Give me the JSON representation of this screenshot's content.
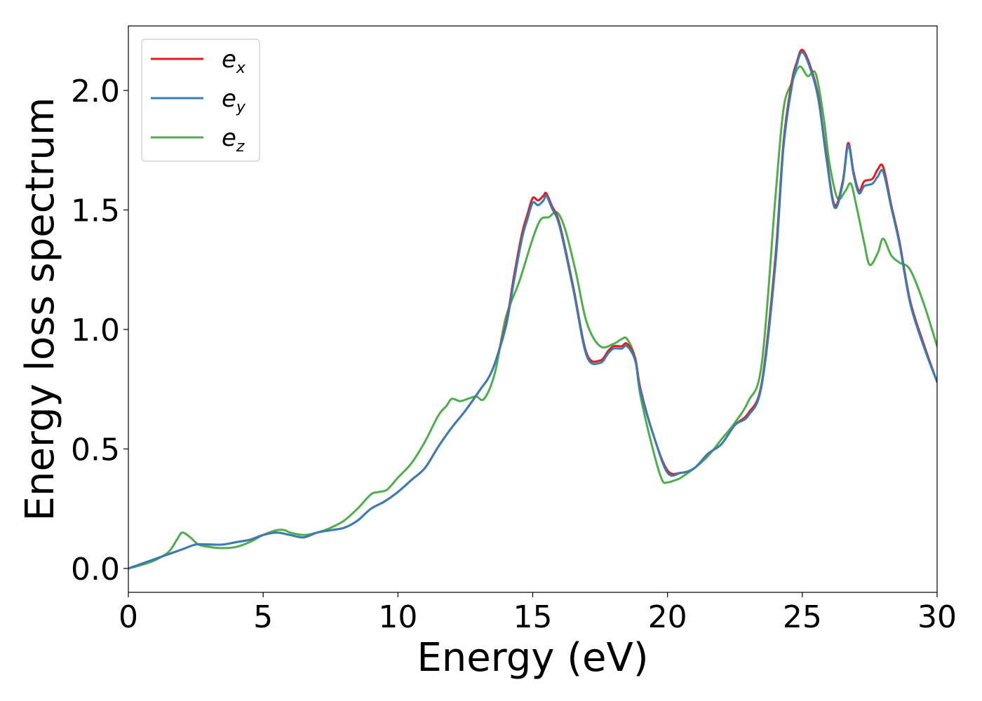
{
  "chart_data": {
    "type": "line",
    "title": "",
    "xlabel": "Energy (eV)",
    "ylabel": "Energy loss spectrum",
    "xlim": [
      0,
      30
    ],
    "ylim": [
      -0.1,
      2.27
    ],
    "xticks": [
      0,
      5,
      10,
      15,
      20,
      25,
      30
    ],
    "xtick_labels": [
      "0",
      "5",
      "10",
      "15",
      "20",
      "25",
      "30"
    ],
    "yticks": [
      0.0,
      0.5,
      1.0,
      1.5,
      2.0
    ],
    "ytick_labels": [
      "0.0",
      "0.5",
      "1.0",
      "1.5",
      "2.0"
    ],
    "grid": false,
    "legend_position": "top-left",
    "series": [
      {
        "name": "e_x",
        "legend_base": "e",
        "legend_sub": "x",
        "color": "#e41a1c",
        "x": [
          0,
          0.5,
          1.0,
          1.5,
          2.0,
          2.5,
          3.0,
          3.5,
          4.0,
          4.5,
          5.0,
          5.5,
          6.0,
          6.5,
          7.0,
          7.5,
          8.0,
          8.5,
          9.0,
          9.5,
          10.0,
          10.5,
          11.0,
          11.5,
          12.0,
          12.5,
          13.0,
          13.5,
          14.0,
          14.3,
          14.6,
          14.8,
          15.0,
          15.2,
          15.4,
          15.5,
          15.7,
          16.0,
          16.5,
          17.0,
          17.5,
          17.8,
          18.0,
          18.3,
          18.5,
          18.8,
          19.0,
          19.5,
          20.0,
          20.5,
          21.0,
          21.5,
          22.0,
          22.5,
          23.0,
          23.5,
          24.0,
          24.3,
          24.6,
          24.8,
          25.0,
          25.3,
          25.6,
          25.9,
          26.2,
          26.5,
          26.7,
          26.9,
          27.1,
          27.3,
          27.6,
          27.8,
          28.0,
          28.3,
          28.6,
          29.0,
          29.5,
          30.0
        ],
        "y": [
          0.0,
          0.02,
          0.04,
          0.06,
          0.08,
          0.1,
          0.1,
          0.1,
          0.11,
          0.12,
          0.14,
          0.15,
          0.14,
          0.13,
          0.15,
          0.16,
          0.17,
          0.2,
          0.25,
          0.28,
          0.32,
          0.37,
          0.42,
          0.51,
          0.59,
          0.66,
          0.74,
          0.83,
          1.02,
          1.22,
          1.4,
          1.48,
          1.55,
          1.54,
          1.56,
          1.57,
          1.52,
          1.44,
          1.18,
          0.9,
          0.87,
          0.91,
          0.93,
          0.93,
          0.94,
          0.88,
          0.75,
          0.55,
          0.41,
          0.4,
          0.42,
          0.48,
          0.52,
          0.6,
          0.65,
          0.78,
          1.3,
          1.78,
          2.03,
          2.12,
          2.17,
          2.1,
          1.97,
          1.72,
          1.52,
          1.62,
          1.78,
          1.66,
          1.58,
          1.62,
          1.63,
          1.67,
          1.68,
          1.52,
          1.37,
          1.12,
          0.94,
          0.78
        ]
      },
      {
        "name": "e_y",
        "legend_base": "e",
        "legend_sub": "y",
        "color": "#377eb8",
        "x": [
          0,
          0.5,
          1.0,
          1.5,
          2.0,
          2.5,
          3.0,
          3.5,
          4.0,
          4.5,
          5.0,
          5.5,
          6.0,
          6.5,
          7.0,
          7.5,
          8.0,
          8.5,
          9.0,
          9.5,
          10.0,
          10.5,
          11.0,
          11.5,
          12.0,
          12.5,
          13.0,
          13.5,
          14.0,
          14.3,
          14.6,
          14.8,
          15.0,
          15.2,
          15.4,
          15.5,
          15.7,
          16.0,
          16.5,
          17.0,
          17.5,
          17.8,
          18.0,
          18.3,
          18.5,
          18.8,
          19.0,
          19.5,
          20.0,
          20.5,
          21.0,
          21.5,
          22.0,
          22.5,
          23.0,
          23.5,
          24.0,
          24.3,
          24.6,
          24.8,
          25.0,
          25.3,
          25.6,
          25.9,
          26.2,
          26.5,
          26.7,
          26.9,
          27.1,
          27.3,
          27.6,
          27.8,
          28.0,
          28.3,
          28.6,
          29.0,
          29.5,
          30.0
        ],
        "y": [
          0.0,
          0.02,
          0.04,
          0.06,
          0.08,
          0.1,
          0.1,
          0.1,
          0.11,
          0.12,
          0.14,
          0.15,
          0.14,
          0.13,
          0.15,
          0.16,
          0.17,
          0.2,
          0.25,
          0.28,
          0.32,
          0.37,
          0.42,
          0.51,
          0.59,
          0.66,
          0.74,
          0.83,
          1.01,
          1.2,
          1.38,
          1.46,
          1.53,
          1.52,
          1.54,
          1.56,
          1.51,
          1.43,
          1.17,
          0.89,
          0.86,
          0.9,
          0.92,
          0.92,
          0.93,
          0.87,
          0.74,
          0.55,
          0.4,
          0.4,
          0.42,
          0.48,
          0.52,
          0.6,
          0.64,
          0.77,
          1.27,
          1.76,
          2.01,
          2.11,
          2.16,
          2.09,
          1.96,
          1.71,
          1.51,
          1.61,
          1.77,
          1.65,
          1.57,
          1.6,
          1.61,
          1.64,
          1.66,
          1.51,
          1.36,
          1.11,
          0.93,
          0.78
        ]
      },
      {
        "name": "e_z",
        "legend_base": "e",
        "legend_sub": "z",
        "color": "#4daf4a",
        "x": [
          0,
          0.5,
          1.0,
          1.5,
          1.8,
          2.0,
          2.3,
          2.6,
          3.0,
          3.5,
          4.0,
          4.5,
          5.0,
          5.5,
          5.8,
          6.0,
          6.5,
          7.0,
          7.5,
          8.0,
          8.5,
          9.0,
          9.3,
          9.6,
          10.0,
          10.5,
          11.0,
          11.5,
          11.8,
          12.0,
          12.3,
          12.6,
          12.9,
          13.2,
          13.6,
          14.0,
          14.5,
          15.0,
          15.3,
          15.6,
          15.9,
          16.2,
          16.6,
          17.0,
          17.5,
          18.0,
          18.3,
          18.5,
          18.8,
          19.0,
          19.5,
          19.8,
          20.0,
          20.3,
          20.5,
          21.0,
          21.5,
          22.0,
          22.5,
          23.0,
          23.5,
          24.0,
          24.3,
          24.6,
          24.9,
          25.2,
          25.5,
          25.8,
          26.0,
          26.3,
          26.6,
          26.8,
          27.0,
          27.3,
          27.5,
          27.8,
          28.0,
          28.3,
          28.6,
          29.0,
          29.5,
          30.0
        ],
        "y": [
          0.0,
          0.015,
          0.035,
          0.07,
          0.12,
          0.15,
          0.13,
          0.1,
          0.09,
          0.085,
          0.09,
          0.11,
          0.14,
          0.16,
          0.16,
          0.15,
          0.14,
          0.15,
          0.17,
          0.2,
          0.25,
          0.31,
          0.32,
          0.33,
          0.38,
          0.44,
          0.53,
          0.64,
          0.68,
          0.71,
          0.7,
          0.71,
          0.72,
          0.71,
          0.82,
          1.05,
          1.2,
          1.38,
          1.46,
          1.47,
          1.49,
          1.42,
          1.24,
          1.03,
          0.93,
          0.94,
          0.96,
          0.96,
          0.88,
          0.72,
          0.48,
          0.37,
          0.36,
          0.37,
          0.38,
          0.42,
          0.47,
          0.54,
          0.61,
          0.7,
          0.86,
          1.55,
          1.92,
          2.03,
          2.1,
          2.06,
          2.07,
          1.88,
          1.7,
          1.55,
          1.58,
          1.61,
          1.52,
          1.36,
          1.27,
          1.32,
          1.38,
          1.31,
          1.28,
          1.25,
          1.11,
          0.93
        ]
      }
    ]
  }
}
